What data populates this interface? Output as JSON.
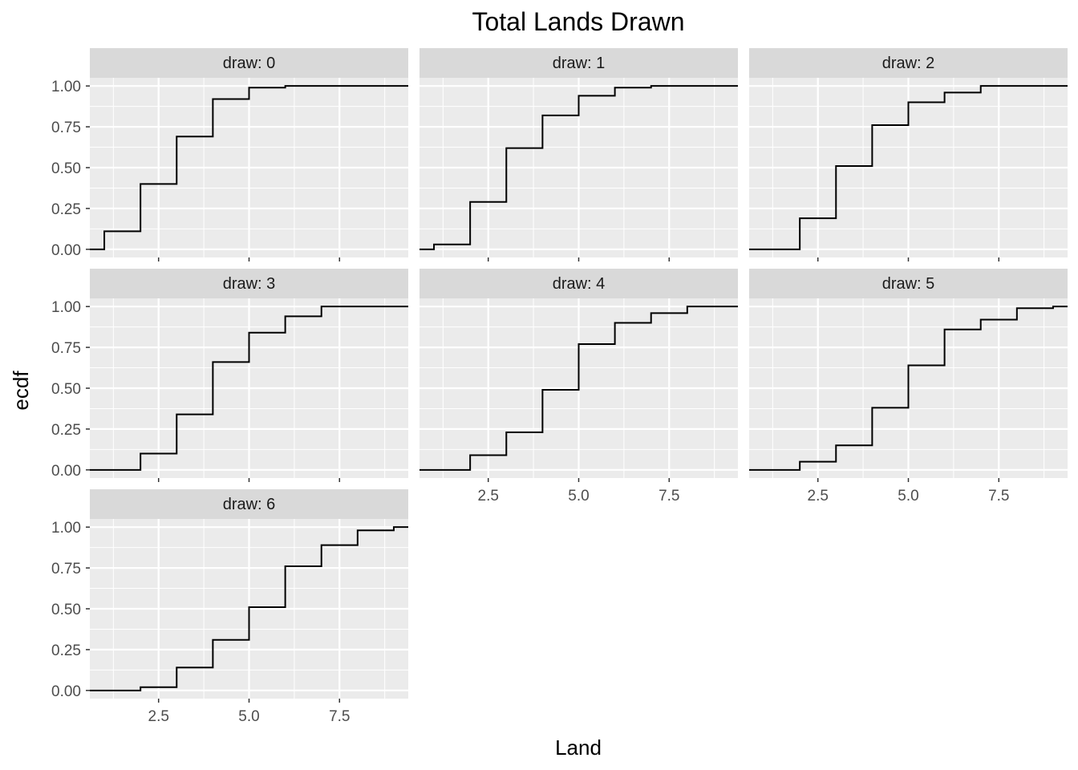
{
  "chart_data": {
    "type": "line",
    "subtype": "ecdf-step",
    "title": "Total Lands Drawn",
    "xlabel": "Land",
    "ylabel": "ecdf",
    "xlim": [
      0.6,
      9.4
    ],
    "ylim": [
      -0.05,
      1.05
    ],
    "xticks": [
      2.5,
      5.0,
      7.5
    ],
    "xtick_labels": [
      "2.5",
      "5.0",
      "7.5"
    ],
    "yticks": [
      0,
      0.25,
      0.5,
      0.75,
      1.0
    ],
    "ytick_labels": [
      "0.00",
      "0.25",
      "0.50",
      "0.75",
      "1.00"
    ],
    "facet_layout": "3 columns, wrapped",
    "colors": {
      "panel": "#ebebeb",
      "grid": "#ffffff",
      "strip": "#d9d9d9",
      "line": "#000000"
    },
    "panels": [
      {
        "label": "draw: 0",
        "x": [
          0,
          1,
          2,
          3,
          4,
          5,
          6,
          7,
          8,
          9
        ],
        "ecdf": [
          0.0,
          0.11,
          0.4,
          0.69,
          0.92,
          0.99,
          1.0,
          1.0,
          1.0,
          1.0
        ]
      },
      {
        "label": "draw: 1",
        "x": [
          0,
          1,
          2,
          3,
          4,
          5,
          6,
          7,
          8,
          9
        ],
        "ecdf": [
          0.0,
          0.03,
          0.29,
          0.62,
          0.82,
          0.94,
          0.99,
          1.0,
          1.0,
          1.0
        ]
      },
      {
        "label": "draw: 2",
        "x": [
          0,
          1,
          2,
          3,
          4,
          5,
          6,
          7,
          8,
          9
        ],
        "ecdf": [
          0.0,
          0.0,
          0.19,
          0.51,
          0.76,
          0.9,
          0.96,
          1.0,
          1.0,
          1.0
        ]
      },
      {
        "label": "draw: 3",
        "x": [
          0,
          1,
          2,
          3,
          4,
          5,
          6,
          7,
          8,
          9
        ],
        "ecdf": [
          0.0,
          0.0,
          0.1,
          0.34,
          0.66,
          0.84,
          0.94,
          1.0,
          1.0,
          1.0
        ]
      },
      {
        "label": "draw: 4",
        "x": [
          0,
          1,
          2,
          3,
          4,
          5,
          6,
          7,
          8,
          9
        ],
        "ecdf": [
          0.0,
          0.0,
          0.09,
          0.23,
          0.49,
          0.77,
          0.9,
          0.96,
          1.0,
          1.0
        ]
      },
      {
        "label": "draw: 5",
        "x": [
          0,
          1,
          2,
          3,
          4,
          5,
          6,
          7,
          8,
          9
        ],
        "ecdf": [
          0.0,
          0.0,
          0.05,
          0.15,
          0.38,
          0.64,
          0.86,
          0.92,
          0.99,
          1.0
        ]
      },
      {
        "label": "draw: 6",
        "x": [
          0,
          1,
          2,
          3,
          4,
          5,
          6,
          7,
          8,
          9
        ],
        "ecdf": [
          0.0,
          0.0,
          0.02,
          0.14,
          0.31,
          0.51,
          0.76,
          0.89,
          0.98,
          1.0
        ]
      }
    ]
  }
}
